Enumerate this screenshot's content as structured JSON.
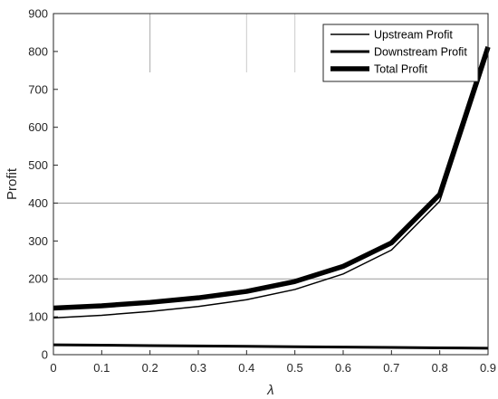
{
  "chart_data": {
    "type": "line",
    "title": "",
    "xlabel": "λ",
    "ylabel": "Profit",
    "xlim": [
      0,
      0.9
    ],
    "ylim": [
      0,
      900
    ],
    "x": [
      0,
      0.1,
      0.2,
      0.3,
      0.4,
      0.5,
      0.6,
      0.7,
      0.8,
      0.9
    ],
    "x_ticks": [
      "0",
      "0.1",
      "0.2",
      "0.3",
      "0.4",
      "0.5",
      "0.6",
      "0.7",
      "0.8",
      "0.9"
    ],
    "y_ticks": [
      "0",
      "100",
      "200",
      "300",
      "400",
      "500",
      "600",
      "700",
      "800",
      "900"
    ],
    "grid": "partial horizontal lines at 200 and 400",
    "legend_position": "top-right",
    "series": [
      {
        "name": "Upstream Profit",
        "values": [
          97,
          104,
          114,
          127,
          145,
          172,
          213,
          276,
          405,
          795
        ],
        "color": "#000000"
      },
      {
        "name": "Downstream Profit",
        "values": [
          26,
          25,
          24,
          23,
          22,
          21,
          20,
          19,
          18,
          17
        ],
        "color": "#000000"
      },
      {
        "name": "Total Profit",
        "values": [
          123,
          129,
          138,
          150,
          167,
          193,
          233,
          295,
          423,
          812
        ],
        "color": "#000000"
      }
    ]
  }
}
